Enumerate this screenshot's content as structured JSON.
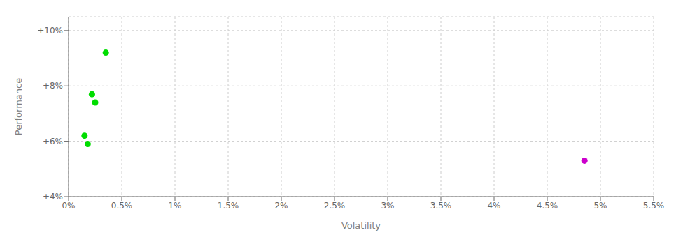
{
  "chart_data": {
    "type": "scatter",
    "xlabel": "Volatility",
    "ylabel": "Performance",
    "xlim": [
      0,
      0.055
    ],
    "ylim": [
      0.04,
      0.105
    ],
    "xticks": [
      {
        "value": 0.0,
        "label": "0%"
      },
      {
        "value": 0.005,
        "label": "0.5%"
      },
      {
        "value": 0.01,
        "label": "1%"
      },
      {
        "value": 0.015,
        "label": "1.5%"
      },
      {
        "value": 0.02,
        "label": "2%"
      },
      {
        "value": 0.025,
        "label": "2.5%"
      },
      {
        "value": 0.03,
        "label": "3%"
      },
      {
        "value": 0.035,
        "label": "3.5%"
      },
      {
        "value": 0.04,
        "label": "4%"
      },
      {
        "value": 0.045,
        "label": "4.5%"
      },
      {
        "value": 0.05,
        "label": "5%"
      },
      {
        "value": 0.055,
        "label": "5.5%"
      }
    ],
    "yticks": [
      {
        "value": 0.04,
        "label": "+4%"
      },
      {
        "value": 0.06,
        "label": "+6%"
      },
      {
        "value": 0.08,
        "label": "+8%"
      },
      {
        "value": 0.1,
        "label": "+10%"
      }
    ],
    "grid": true,
    "series": [
      {
        "color": "#00dd00",
        "x": [
          0.0035,
          0.0022,
          0.0025,
          0.0015,
          0.0018
        ],
        "values": [
          0.092,
          0.077,
          0.074,
          0.062,
          0.059
        ]
      },
      {
        "color": "#cc00cc",
        "x": [
          0.0485
        ],
        "values": [
          0.053
        ]
      }
    ]
  }
}
